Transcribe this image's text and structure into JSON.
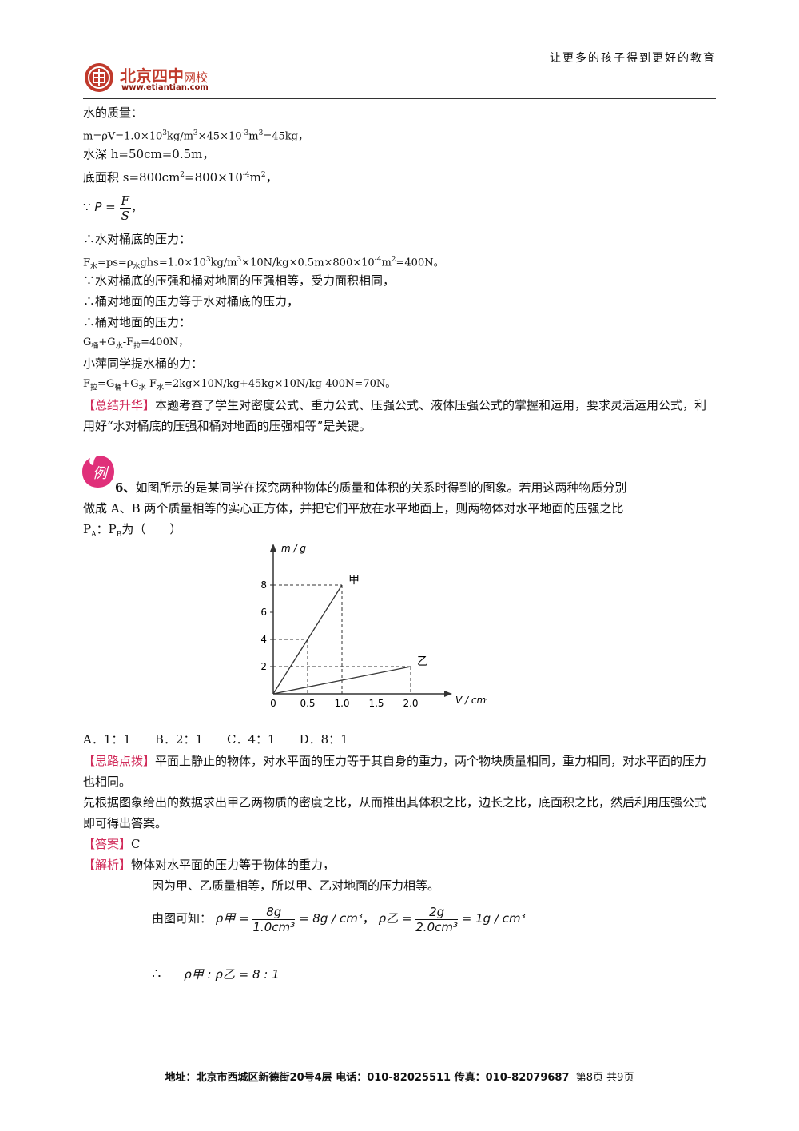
{
  "header": {
    "slogan": "让更多的孩子得到更好的教育",
    "logo_name": "北京四中",
    "logo_suffix": "网校",
    "logo_url": "www.etiantian.com"
  },
  "solution_prev": {
    "l1": "水的质量：",
    "l2": "m=ρV=1.0×10³kg/m³×45×10⁻³m³=45kg，",
    "l3": "水深 h=50cm=0.5m，",
    "l4": "底面积 s=800cm²=800×10⁻⁴m²，",
    "l5_prefix": "∵",
    "l5_lhs": "P =",
    "l5_num": "F",
    "l5_den": "S",
    "l5_suffix": "，",
    "l6": "∴水对桶底的压力：",
    "l7": "F水=ps=ρ水ghs=1.0×10³kg/m³×10N/kg×0.5m×800×10⁻⁴m²=400N。",
    "l8": "∵水对桶底的压强和桶对地面的压强相等，受力面积相同，",
    "l9": "∴桶对地面的压力等于水对桶底的压力，",
    "l10": "∴桶对地面的压力：",
    "l11": "G桶+G水-F拉=400N，",
    "l12": "小萍同学提水桶的力：",
    "l13": "F拉=G桶+G水-F水=2kg×10N/kg+45kg×10N/kg-400N=70N。",
    "summary_tag": "【总结升华】",
    "summary_text": "本题考查了学生对密度公式、重力公式、压强公式、液体压强公式的掌握和运用，要求灵活运用公式，利用好“水对桶底的压强和桶对地面的压强相等”是关键。"
  },
  "example": {
    "badge": "例",
    "number": "6、",
    "question_a": "如图所示的是某同学在探究两种物体的质量和体积的关系时得到的图象。若用这两种物质分别",
    "question_b": "做成 A、B 两个质量相等的实心正方体，并把它们平放在水平地面上，则两物体对水平地面的压强之比",
    "question_c": "PA：PB为（　　）",
    "options": "A．1：1　　B．2：1　　C．4：1　　D．8：1",
    "hint_tag": "【思路点拨】",
    "hint_text": "平面上静止的物体，对水平面的压力等于其自身的重力，两个物块质量相同，重力相同，对水平面的压力也相同。",
    "hint_text2": "先根据图象给出的数据求出甲乙两物质的密度之比，从而推出其体积之比，边长之比，底面积之比，然后利用压强公式即可得出答案。",
    "answer_tag": "【答案】",
    "answer": "C",
    "analysis_tag": "【解析】",
    "analysis_1": "物体对水平面的压力等于物体的重力，",
    "analysis_2": "因为甲、乙质量相等，所以甲、乙对地面的压力相等。",
    "analysis_3": "由图可知：",
    "rho_jia_lhs": "ρ甲 =",
    "rho_jia_num": "8g",
    "rho_jia_den": "1.0cm³",
    "rho_jia_rhs": "= 8g / cm³",
    "comma": "，",
    "rho_yi_lhs": "ρ乙 =",
    "rho_yi_num": "2g",
    "rho_yi_den": "2.0cm³",
    "rho_yi_rhs": "= 1g / cm³",
    "therefore": "∴",
    "ratio": "ρ甲 : ρ乙 = 8 : 1"
  },
  "chart_data": {
    "type": "line",
    "xlabel": "V / cm³",
    "ylabel": "m / g",
    "xlim": [
      0,
      2.0
    ],
    "ylim": [
      0,
      8
    ],
    "x_ticks": [
      "0",
      "0.5",
      "1.0",
      "1.5",
      "2.0"
    ],
    "y_ticks": [
      "2",
      "4",
      "6",
      "8"
    ],
    "series": [
      {
        "name": "甲",
        "x": [
          0,
          0.5,
          1.0
        ],
        "y": [
          0,
          4,
          8
        ]
      },
      {
        "name": "乙",
        "x": [
          0,
          1.0,
          2.0
        ],
        "y": [
          0,
          1,
          2
        ]
      }
    ],
    "guides": "dashed"
  },
  "footer": {
    "address": "地址：北京市西城区新德街20号4层 电话：010-82025511 传真：010-82079687",
    "page": "第8页 共9页"
  }
}
